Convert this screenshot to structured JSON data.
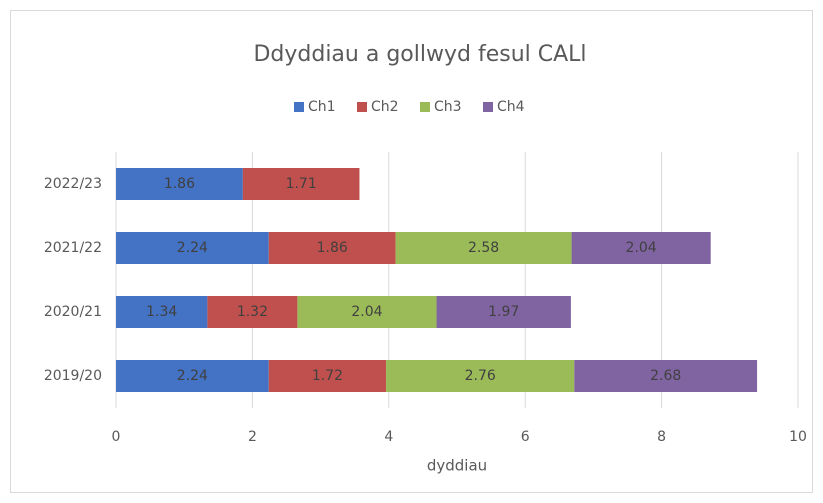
{
  "chart_data": {
    "type": "stacked_barh",
    "title": "Ddyddiau a gollwyd fesul CALl",
    "categories": [
      "2022/23",
      "2021/22",
      "2020/21",
      "2019/20"
    ],
    "series": [
      {
        "name": "Ch1",
        "color": "#4472c4",
        "values": [
          1.86,
          2.24,
          1.34,
          2.24
        ]
      },
      {
        "name": "Ch2",
        "color": "#c0504d",
        "values": [
          1.71,
          1.86,
          1.32,
          1.72
        ]
      },
      {
        "name": "Ch3",
        "color": "#9bbb59",
        "values": [
          null,
          2.58,
          2.04,
          2.76
        ]
      },
      {
        "name": "Ch4",
        "color": "#8064a2",
        "values": [
          null,
          2.04,
          1.97,
          2.68
        ]
      }
    ],
    "xlabel": "dyddiau",
    "xlim": [
      0,
      10
    ],
    "xticks": [
      0,
      2,
      4,
      6,
      8,
      10
    ],
    "grid": true,
    "legend": "top"
  }
}
